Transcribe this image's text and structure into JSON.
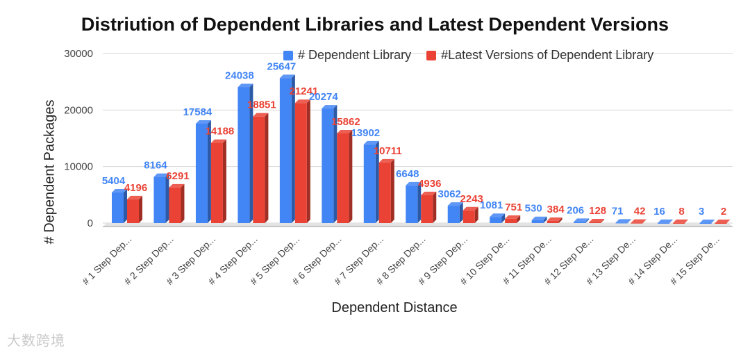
{
  "chart_data": {
    "type": "bar",
    "title": "Distriution of Dependent Libraries and Latest Dependent Versions",
    "xlabel": "Dependent Distance",
    "ylabel": "# Dependent Packages",
    "ylim": [
      0,
      30000
    ],
    "yticks": [
      "0",
      "10000",
      "20000",
      "30000"
    ],
    "grid": true,
    "legend_position": "top-right",
    "categories": [
      "# 1 Step Dep...",
      "# 2 Step Dep...",
      "# 3 Step Dep...",
      "# 4 Step Dep...",
      "# 5 Step Dep...",
      "# 6 Step Dep...",
      "# 7 Step Dep...",
      "# 8 Step Dep...",
      "# 9 Step Dep...",
      "# 10 Step De...",
      "# 11 Step De...",
      "# 12 Step De...",
      "# 13 Step De...",
      "# 14 Step De...",
      "# 15 Step De..."
    ],
    "series": [
      {
        "name": "# Dependent Library",
        "color": "#4285f4",
        "values": [
          5404,
          8164,
          17584,
          24038,
          25647,
          20274,
          13902,
          6648,
          3062,
          1081,
          530,
          206,
          71,
          16,
          3
        ]
      },
      {
        "name": "#Latest Versions of Dependent Library",
        "color": "#ea4335",
        "values": [
          4196,
          6291,
          14188,
          18851,
          21241,
          15862,
          10711,
          4936,
          2243,
          751,
          384,
          128,
          42,
          8,
          2
        ]
      }
    ]
  },
  "watermark": "大数跨境"
}
